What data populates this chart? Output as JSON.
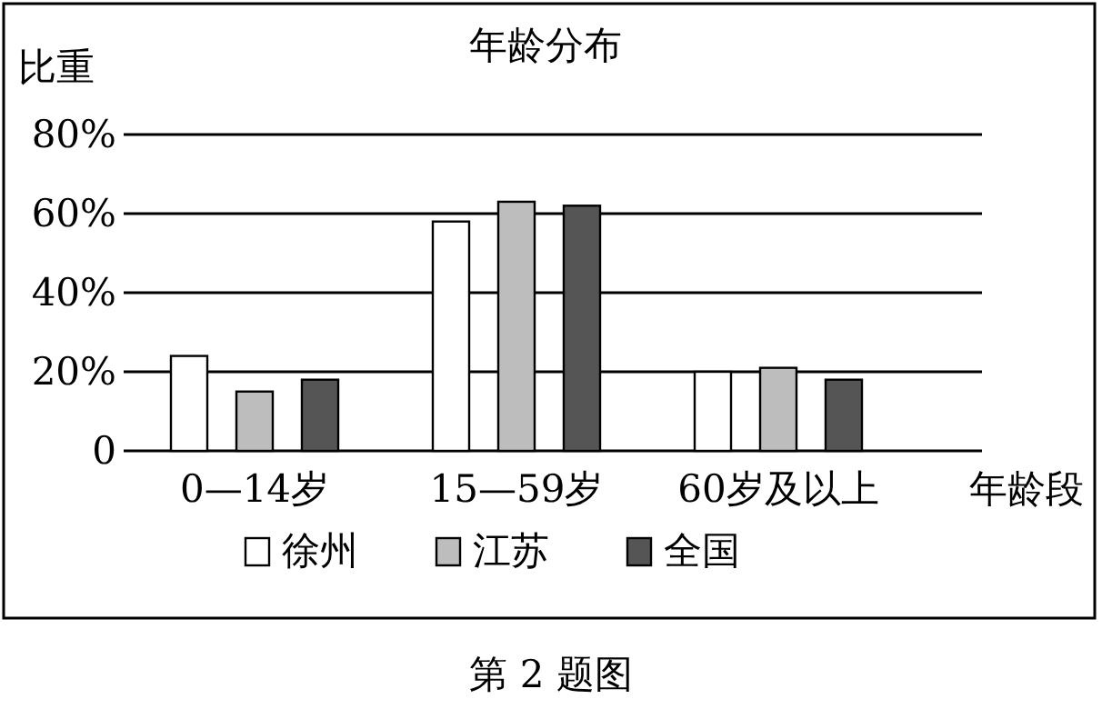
{
  "chart_data": {
    "type": "bar",
    "title": "年龄分布",
    "ylabel": "比重",
    "xlabel": "年龄段",
    "categories": [
      "0—14岁",
      "15—59岁",
      "60岁及以上"
    ],
    "series": [
      {
        "name": "徐州",
        "color": "#ffffff",
        "values": [
          24,
          58,
          20
        ]
      },
      {
        "name": "江苏",
        "color": "#bdbdbd",
        "values": [
          15,
          63,
          21
        ]
      },
      {
        "name": "全国",
        "color": "#555555",
        "values": [
          18,
          62,
          18
        ]
      }
    ],
    "ylim": [
      0,
      80
    ],
    "yticks": [
      0,
      {
        "value": 20,
        "label": "20%"
      },
      {
        "value": 40,
        "label": "40%"
      },
      {
        "value": 60,
        "label": "60%"
      },
      {
        "value": 80,
        "label": "80%"
      }
    ],
    "grid": "y",
    "legend": "bottom",
    "annotations": [
      "第 2 题图"
    ]
  }
}
